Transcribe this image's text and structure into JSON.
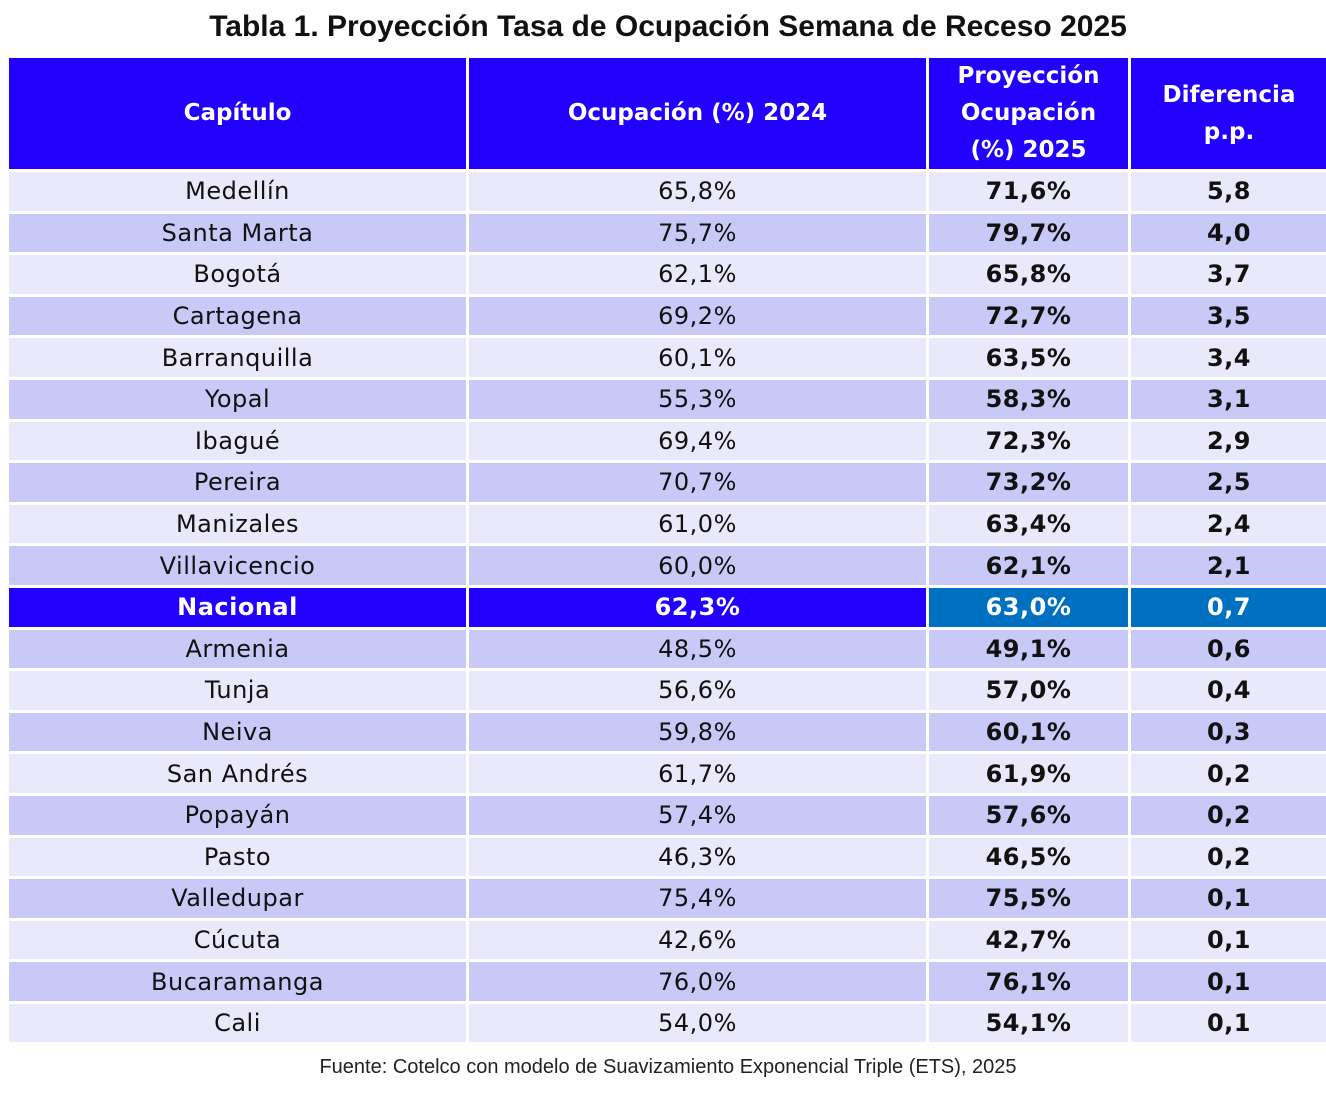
{
  "header": {
    "title": "Tabla 1. Proyección Tasa de Ocupación Semana de Receso 2025"
  },
  "table": {
    "columns": [
      "Capítulo",
      "Ocupación (%) 2024",
      "Proyección Ocupación (%) 2025",
      "Diferencia p.p."
    ],
    "rows": [
      [
        "Medellín",
        "65,8%",
        "71,6%",
        "5,8"
      ],
      [
        "Santa Marta",
        "75,7%",
        "79,7%",
        "4,0"
      ],
      [
        "Bogotá",
        "62,1%",
        "65,8%",
        "3,7"
      ],
      [
        "Cartagena",
        "69,2%",
        "72,7%",
        "3,5"
      ],
      [
        "Barranquilla",
        "60,1%",
        "63,5%",
        "3,4"
      ],
      [
        "Yopal",
        "55,3%",
        "58,3%",
        "3,1"
      ],
      [
        "Ibagué",
        "69,4%",
        "72,3%",
        "2,9"
      ],
      [
        "Pereira",
        "70,7%",
        "73,2%",
        "2,5"
      ],
      [
        "Manizales",
        "61,0%",
        "63,4%",
        "2,4"
      ],
      [
        "Villavicencio",
        "60,0%",
        "62,1%",
        "2,1"
      ],
      [
        "Nacional",
        "62,3%",
        "63,0%",
        "0,7"
      ],
      [
        "Armenia",
        "48,5%",
        "49,1%",
        "0,6"
      ],
      [
        "Tunja",
        "56,6%",
        "57,0%",
        "0,4"
      ],
      [
        "Neiva",
        "59,8%",
        "60,1%",
        "0,3"
      ],
      [
        "San Andrés",
        "61,7%",
        "61,9%",
        "0,2"
      ],
      [
        "Popayán",
        "57,4%",
        "57,6%",
        "0,2"
      ],
      [
        "Pasto",
        "46,3%",
        "46,5%",
        "0,2"
      ],
      [
        "Valledupar",
        "75,4%",
        "75,5%",
        "0,1"
      ],
      [
        "Cúcuta",
        "42,6%",
        "42,7%",
        "0,1"
      ],
      [
        "Bucaramanga",
        "76,0%",
        "76,1%",
        "0,1"
      ],
      [
        "Cali",
        "54,0%",
        "54,1%",
        "0,1"
      ]
    ]
  },
  "footer": {
    "source": "Fuente: Cotelco con modelo de Suavizamiento Exponencial Triple (ETS), 2025"
  }
}
